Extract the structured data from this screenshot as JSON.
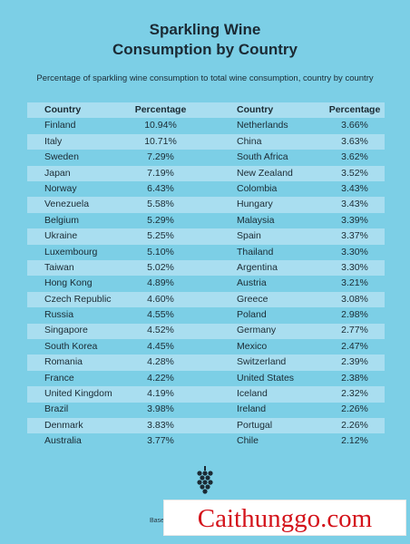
{
  "title_line1": "Sparkling Wine",
  "title_line2": "Consumption by Country",
  "subtitle": "Percentage of sparkling wine consumption to total wine consumption, country by country",
  "table": {
    "headers": {
      "country": "Country",
      "percentage": "Percentage"
    },
    "left": [
      {
        "country": "Finland",
        "pct": "10.94%"
      },
      {
        "country": "Italy",
        "pct": "10.71%"
      },
      {
        "country": "Sweden",
        "pct": "7.29%"
      },
      {
        "country": "Japan",
        "pct": "7.19%"
      },
      {
        "country": "Norway",
        "pct": "6.43%"
      },
      {
        "country": "Venezuela",
        "pct": "5.58%"
      },
      {
        "country": "Belgium",
        "pct": "5.29%"
      },
      {
        "country": "Ukraine",
        "pct": "5.25%"
      },
      {
        "country": "Luxembourg",
        "pct": "5.10%"
      },
      {
        "country": "Taiwan",
        "pct": "5.02%"
      },
      {
        "country": "Hong Kong",
        "pct": "4.89%"
      },
      {
        "country": "Czech Republic",
        "pct": "4.60%"
      },
      {
        "country": "Russia",
        "pct": "4.55%"
      },
      {
        "country": "Singapore",
        "pct": "4.52%"
      },
      {
        "country": "South Korea",
        "pct": "4.45%"
      },
      {
        "country": "Romania",
        "pct": "4.28%"
      },
      {
        "country": "France",
        "pct": "4.22%"
      },
      {
        "country": "United Kingdom",
        "pct": "4.19%"
      },
      {
        "country": "Brazil",
        "pct": "3.98%"
      },
      {
        "country": "Denmark",
        "pct": "3.83%"
      },
      {
        "country": "Australia",
        "pct": "3.77%"
      }
    ],
    "right": [
      {
        "country": "Netherlands",
        "pct": "3.66%"
      },
      {
        "country": "China",
        "pct": "3.63%"
      },
      {
        "country": "South Africa",
        "pct": "3.62%"
      },
      {
        "country": "New Zealand",
        "pct": "3.52%"
      },
      {
        "country": "Colombia",
        "pct": "3.43%"
      },
      {
        "country": "Hungary",
        "pct": "3.43%"
      },
      {
        "country": "Malaysia",
        "pct": "3.39%"
      },
      {
        "country": "Spain",
        "pct": "3.37%"
      },
      {
        "country": "Thailand",
        "pct": "3.30%"
      },
      {
        "country": "Argentina",
        "pct": "3.30%"
      },
      {
        "country": "Austria",
        "pct": "3.21%"
      },
      {
        "country": "Greece",
        "pct": "3.08%"
      },
      {
        "country": "Poland",
        "pct": "2.98%"
      },
      {
        "country": "Germany",
        "pct": "2.77%"
      },
      {
        "country": "Mexico",
        "pct": "2.47%"
      },
      {
        "country": "Switzerland",
        "pct": "2.39%"
      },
      {
        "country": "United States",
        "pct": "2.38%"
      },
      {
        "country": "Iceland",
        "pct": "2.32%"
      },
      {
        "country": "Ireland",
        "pct": "2.26%"
      },
      {
        "country": "Portugal",
        "pct": "2.26%"
      },
      {
        "country": "Chile",
        "pct": "2.12%"
      }
    ]
  },
  "footer": {
    "source_text": "Base",
    "logo_icon": "grape-cluster-icon"
  },
  "watermark": "Caithunggo.com",
  "colors": {
    "background": "#7ccfe6",
    "stripe": "#a9def0",
    "watermark_text": "#d4131b"
  }
}
